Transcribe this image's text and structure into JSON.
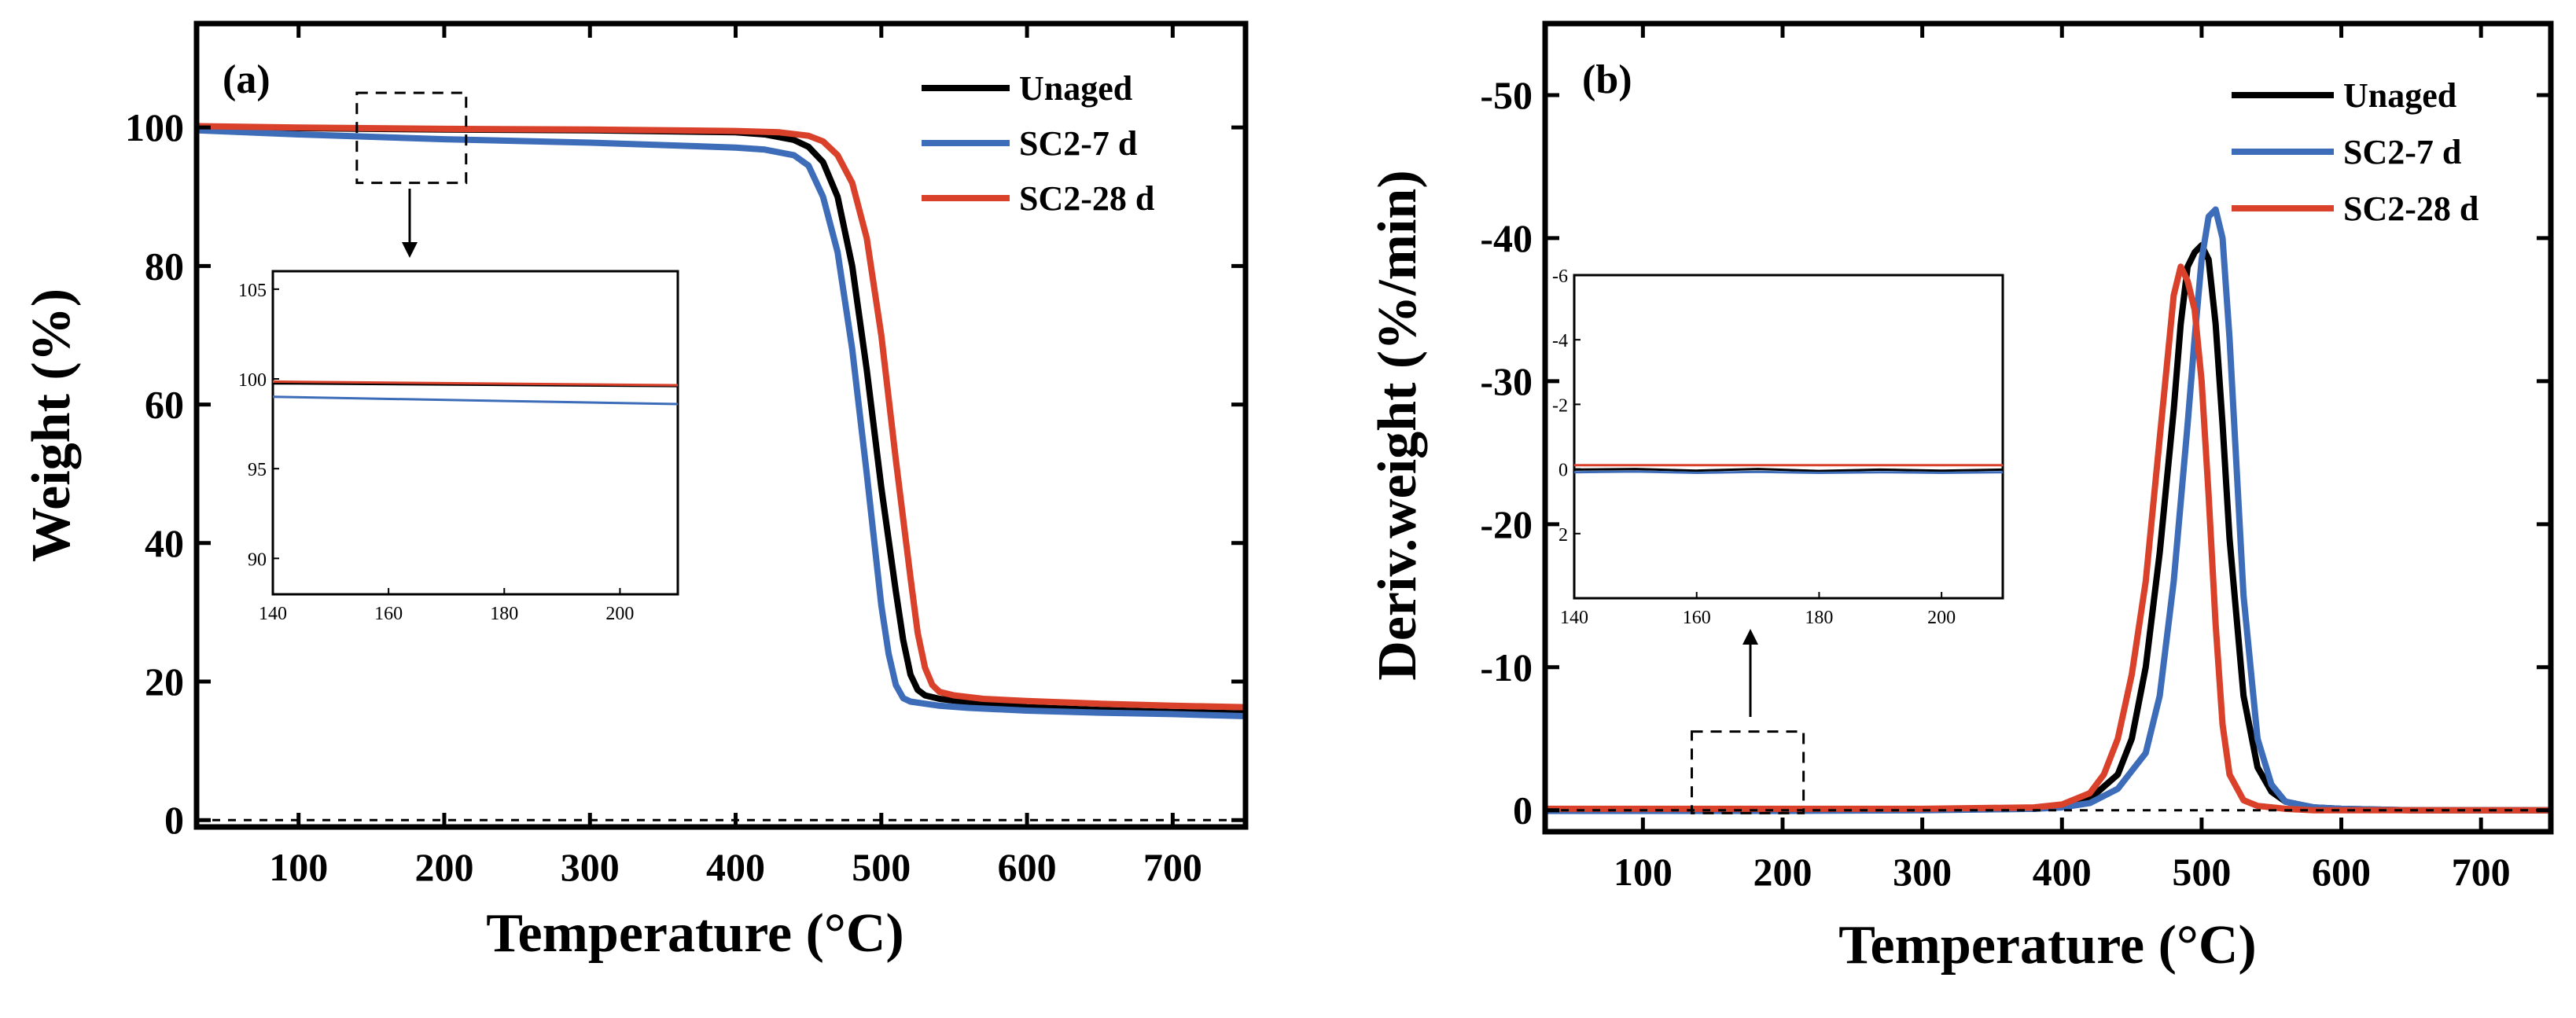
{
  "colors": {
    "Unaged": "#000000",
    "SC2-7 d": "#3d6cb9",
    "SC2-28 d": "#d9412b"
  },
  "chart_data": [
    {
      "type": "line",
      "panel_label": "(a)",
      "xlabel": "Temperature (°C)",
      "ylabel": "Weight (%)",
      "xlim": [
        30,
        750
      ],
      "ylim": [
        -1,
        115
      ],
      "x_ticks": [
        100,
        200,
        300,
        400,
        500,
        600,
        700
      ],
      "y_ticks": [
        0,
        20,
        40,
        60,
        80,
        100
      ],
      "x_tick_labels": [
        "100",
        "200",
        "300",
        "400",
        "500",
        "600",
        "700"
      ],
      "y_tick_labels": [
        "0",
        "20",
        "40",
        "60",
        "80",
        "100"
      ],
      "legend": {
        "position": "top-right",
        "entries": [
          "Unaged",
          "SC2-7 d",
          "SC2-28 d"
        ]
      },
      "zoom_box": {
        "x": [
          140,
          215
        ],
        "y": [
          92,
          105
        ]
      },
      "series": [
        {
          "name": "Unaged",
          "x": [
            30,
            100,
            200,
            300,
            400,
            420,
            440,
            450,
            460,
            470,
            480,
            490,
            500,
            510,
            515,
            520,
            525,
            530,
            540,
            560,
            600,
            650,
            700,
            750
          ],
          "y": [
            100.1,
            99.9,
            99.7,
            99.6,
            99.3,
            99.0,
            98.2,
            97.2,
            95.0,
            90.0,
            80.0,
            65.0,
            48.0,
            33.0,
            26.0,
            21.0,
            18.8,
            18.0,
            17.5,
            17.0,
            16.3,
            15.9,
            15.6,
            15.4
          ]
        },
        {
          "name": "SC2-7 d",
          "x": [
            30,
            100,
            200,
            300,
            400,
            420,
            440,
            450,
            460,
            470,
            480,
            490,
            500,
            505,
            510,
            515,
            520,
            530,
            540,
            560,
            600,
            650,
            700,
            750
          ],
          "y": [
            99.6,
            99.0,
            98.3,
            97.8,
            97.1,
            96.8,
            96.0,
            94.5,
            90.0,
            82.0,
            68.0,
            50.0,
            31.0,
            24.0,
            19.5,
            17.6,
            17.1,
            16.8,
            16.5,
            16.2,
            15.8,
            15.5,
            15.3,
            15.0
          ]
        },
        {
          "name": "SC2-28 d",
          "x": [
            30,
            100,
            200,
            300,
            400,
            430,
            450,
            460,
            470,
            480,
            490,
            500,
            510,
            520,
            525,
            530,
            535,
            540,
            550,
            570,
            600,
            650,
            700,
            750
          ],
          "y": [
            100.2,
            100.0,
            99.8,
            99.7,
            99.5,
            99.3,
            98.8,
            98.0,
            96.0,
            92.0,
            84.0,
            70.0,
            52.0,
            35.0,
            27.0,
            22.0,
            19.5,
            18.5,
            18.0,
            17.5,
            17.2,
            16.8,
            16.5,
            16.3
          ]
        }
      ],
      "inset": {
        "xlim": [
          140,
          210
        ],
        "ylim": [
          88,
          106
        ],
        "x_ticks": [
          140,
          160,
          180,
          200
        ],
        "y_ticks": [
          90,
          95,
          100,
          105
        ],
        "x_tick_labels": [
          "140",
          "160",
          "180",
          "200"
        ],
        "y_tick_labels": [
          "90",
          "95",
          "100",
          "105"
        ],
        "series": [
          {
            "name": "Unaged",
            "x": [
              140,
              210
            ],
            "y": [
              99.75,
              99.6
            ]
          },
          {
            "name": "SC2-7 d",
            "x": [
              140,
              210
            ],
            "y": [
              99.0,
              98.6
            ]
          },
          {
            "name": "SC2-28 d",
            "x": [
              140,
              210
            ],
            "y": [
              99.85,
              99.65
            ]
          }
        ]
      }
    },
    {
      "type": "line",
      "panel_label": "(b)",
      "xlabel": "Temperature (°C)",
      "ylabel": "Deriv.weight (%/min)",
      "xlim": [
        30,
        750
      ],
      "ylim": [
        1.5,
        -55
      ],
      "y_reversed": true,
      "x_ticks": [
        100,
        200,
        300,
        400,
        500,
        600,
        700
      ],
      "y_ticks": [
        0,
        -10,
        -20,
        -30,
        -40,
        -50
      ],
      "x_tick_labels": [
        "100",
        "200",
        "300",
        "400",
        "500",
        "600",
        "700"
      ],
      "y_tick_labels": [
        "0",
        "-10",
        "-20",
        "-30",
        "-40",
        "-50"
      ],
      "legend": {
        "position": "top-right",
        "entries": [
          "Unaged",
          "SC2-7 d",
          "SC2-28 d"
        ]
      },
      "zoom_box": {
        "x": [
          135,
          215
        ],
        "y": [
          0.2,
          -5.5
        ]
      },
      "series": [
        {
          "name": "Unaged",
          "x": [
            30,
            100,
            200,
            300,
            380,
            400,
            420,
            440,
            450,
            460,
            470,
            480,
            485,
            490,
            495,
            500,
            505,
            510,
            515,
            520,
            530,
            540,
            550,
            560,
            580,
            600,
            650,
            700,
            750
          ],
          "y": [
            0,
            0,
            0,
            -0.05,
            -0.1,
            -0.3,
            -0.8,
            -2.5,
            -5,
            -10,
            -18,
            -28,
            -34,
            -38,
            -39,
            -39.5,
            -38.5,
            -34,
            -27,
            -19,
            -8,
            -3,
            -1.3,
            -0.6,
            -0.2,
            -0.1,
            0,
            0,
            0
          ]
        },
        {
          "name": "SC2-7 d",
          "x": [
            30,
            100,
            200,
            300,
            380,
            400,
            420,
            440,
            460,
            470,
            480,
            490,
            495,
            500,
            505,
            510,
            515,
            520,
            525,
            530,
            540,
            550,
            560,
            580,
            600,
            650,
            700,
            750
          ],
          "y": [
            0.05,
            0.05,
            0.05,
            0,
            -0.1,
            -0.2,
            -0.5,
            -1.5,
            -4,
            -8,
            -16,
            -27,
            -33,
            -38.5,
            -41.5,
            -42,
            -40,
            -33,
            -24,
            -15,
            -5,
            -1.8,
            -0.6,
            -0.2,
            -0.1,
            0,
            0,
            0
          ]
        },
        {
          "name": "SC2-28 d",
          "x": [
            30,
            100,
            200,
            300,
            380,
            400,
            420,
            430,
            440,
            450,
            460,
            470,
            475,
            480,
            485,
            490,
            495,
            500,
            505,
            510,
            515,
            520,
            530,
            540,
            560,
            580,
            600,
            650,
            700,
            750
          ],
          "y": [
            -0.1,
            -0.1,
            -0.1,
            -0.1,
            -0.2,
            -0.4,
            -1.2,
            -2.5,
            -5,
            -9.5,
            -16,
            -26,
            -31,
            -36,
            -38,
            -37,
            -35,
            -30,
            -22,
            -13,
            -6,
            -2.5,
            -0.7,
            -0.3,
            -0.1,
            0,
            0,
            0,
            0,
            0
          ]
        }
      ],
      "inset": {
        "xlim": [
          140,
          210
        ],
        "ylim": [
          4,
          -6
        ],
        "y_reversed": true,
        "x_ticks": [
          140,
          160,
          180,
          200
        ],
        "y_ticks": [
          -6,
          -4,
          -2,
          0,
          2
        ],
        "x_tick_labels": [
          "140",
          "160",
          "180",
          "200"
        ],
        "y_tick_labels": [
          "-6",
          "-4",
          "-2",
          "0",
          "2"
        ],
        "series": [
          {
            "name": "Unaged",
            "x": [
              140,
              150,
              160,
              170,
              180,
              190,
              200,
              210
            ],
            "y": [
              0.02,
              0,
              0.05,
              0.0,
              0.06,
              0.02,
              0.05,
              0.02
            ]
          },
          {
            "name": "SC2-7 d",
            "x": [
              140,
              150,
              160,
              170,
              180,
              190,
              200,
              210
            ],
            "y": [
              0.1,
              0.08,
              0.12,
              0.09,
              0.12,
              0.1,
              0.12,
              0.1
            ]
          },
          {
            "name": "SC2-28 d",
            "x": [
              140,
              210
            ],
            "y": [
              -0.12,
              -0.12
            ]
          }
        ]
      }
    }
  ]
}
